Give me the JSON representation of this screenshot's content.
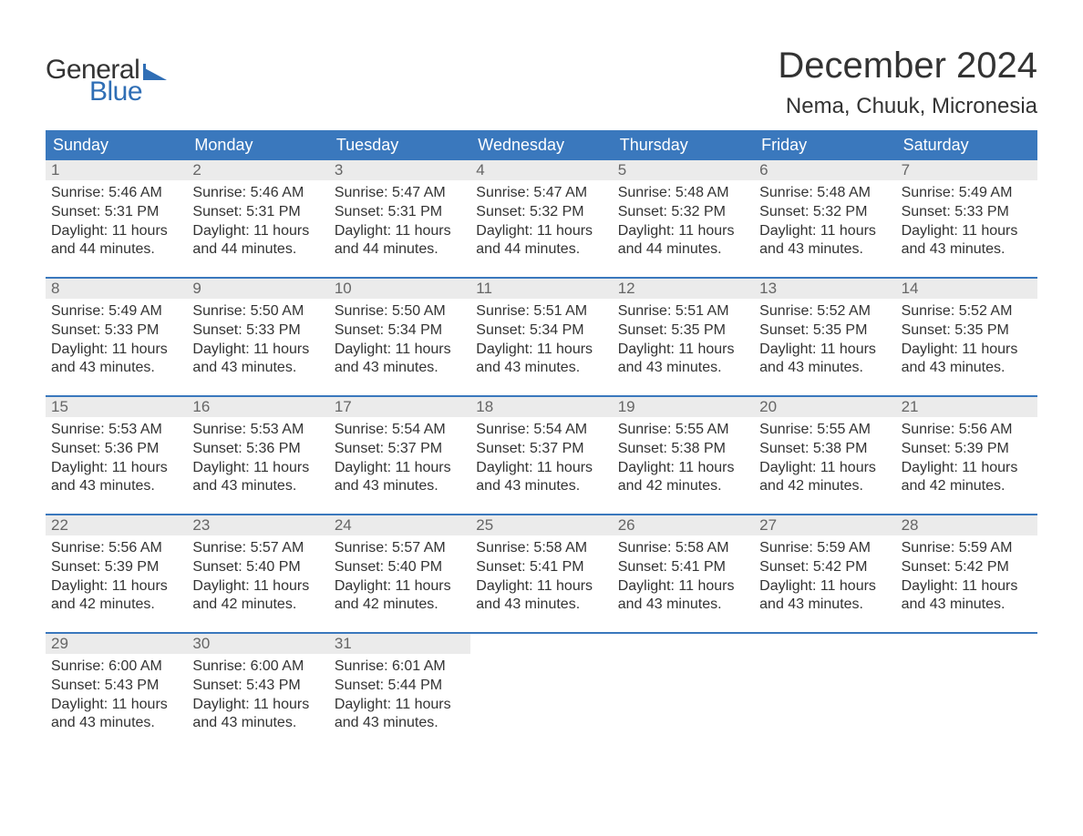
{
  "logo": {
    "text_general": "General",
    "text_blue": "Blue",
    "flag_color": "#2f6eb5"
  },
  "header": {
    "month_title": "December 2024",
    "location": "Nema, Chuuk, Micronesia"
  },
  "colors": {
    "header_bg": "#3a78bd",
    "header_text": "#ffffff",
    "daynum_bg": "#ebebeb",
    "daynum_text": "#666666",
    "body_text": "#333333",
    "week_border": "#3a78bd",
    "page_bg": "#ffffff",
    "logo_blue": "#2f6eb5"
  },
  "typography": {
    "month_title_fontsize": 40,
    "location_fontsize": 24,
    "weekday_fontsize": 18,
    "daynum_fontsize": 17,
    "body_fontsize": 16,
    "logo_fontsize": 30
  },
  "weekdays": [
    "Sunday",
    "Monday",
    "Tuesday",
    "Wednesday",
    "Thursday",
    "Friday",
    "Saturday"
  ],
  "weeks": [
    [
      {
        "n": "1",
        "sunrise": "Sunrise: 5:46 AM",
        "sunset": "Sunset: 5:31 PM",
        "dl1": "Daylight: 11 hours",
        "dl2": "and 44 minutes."
      },
      {
        "n": "2",
        "sunrise": "Sunrise: 5:46 AM",
        "sunset": "Sunset: 5:31 PM",
        "dl1": "Daylight: 11 hours",
        "dl2": "and 44 minutes."
      },
      {
        "n": "3",
        "sunrise": "Sunrise: 5:47 AM",
        "sunset": "Sunset: 5:31 PM",
        "dl1": "Daylight: 11 hours",
        "dl2": "and 44 minutes."
      },
      {
        "n": "4",
        "sunrise": "Sunrise: 5:47 AM",
        "sunset": "Sunset: 5:32 PM",
        "dl1": "Daylight: 11 hours",
        "dl2": "and 44 minutes."
      },
      {
        "n": "5",
        "sunrise": "Sunrise: 5:48 AM",
        "sunset": "Sunset: 5:32 PM",
        "dl1": "Daylight: 11 hours",
        "dl2": "and 44 minutes."
      },
      {
        "n": "6",
        "sunrise": "Sunrise: 5:48 AM",
        "sunset": "Sunset: 5:32 PM",
        "dl1": "Daylight: 11 hours",
        "dl2": "and 43 minutes."
      },
      {
        "n": "7",
        "sunrise": "Sunrise: 5:49 AM",
        "sunset": "Sunset: 5:33 PM",
        "dl1": "Daylight: 11 hours",
        "dl2": "and 43 minutes."
      }
    ],
    [
      {
        "n": "8",
        "sunrise": "Sunrise: 5:49 AM",
        "sunset": "Sunset: 5:33 PM",
        "dl1": "Daylight: 11 hours",
        "dl2": "and 43 minutes."
      },
      {
        "n": "9",
        "sunrise": "Sunrise: 5:50 AM",
        "sunset": "Sunset: 5:33 PM",
        "dl1": "Daylight: 11 hours",
        "dl2": "and 43 minutes."
      },
      {
        "n": "10",
        "sunrise": "Sunrise: 5:50 AM",
        "sunset": "Sunset: 5:34 PM",
        "dl1": "Daylight: 11 hours",
        "dl2": "and 43 minutes."
      },
      {
        "n": "11",
        "sunrise": "Sunrise: 5:51 AM",
        "sunset": "Sunset: 5:34 PM",
        "dl1": "Daylight: 11 hours",
        "dl2": "and 43 minutes."
      },
      {
        "n": "12",
        "sunrise": "Sunrise: 5:51 AM",
        "sunset": "Sunset: 5:35 PM",
        "dl1": "Daylight: 11 hours",
        "dl2": "and 43 minutes."
      },
      {
        "n": "13",
        "sunrise": "Sunrise: 5:52 AM",
        "sunset": "Sunset: 5:35 PM",
        "dl1": "Daylight: 11 hours",
        "dl2": "and 43 minutes."
      },
      {
        "n": "14",
        "sunrise": "Sunrise: 5:52 AM",
        "sunset": "Sunset: 5:35 PM",
        "dl1": "Daylight: 11 hours",
        "dl2": "and 43 minutes."
      }
    ],
    [
      {
        "n": "15",
        "sunrise": "Sunrise: 5:53 AM",
        "sunset": "Sunset: 5:36 PM",
        "dl1": "Daylight: 11 hours",
        "dl2": "and 43 minutes."
      },
      {
        "n": "16",
        "sunrise": "Sunrise: 5:53 AM",
        "sunset": "Sunset: 5:36 PM",
        "dl1": "Daylight: 11 hours",
        "dl2": "and 43 minutes."
      },
      {
        "n": "17",
        "sunrise": "Sunrise: 5:54 AM",
        "sunset": "Sunset: 5:37 PM",
        "dl1": "Daylight: 11 hours",
        "dl2": "and 43 minutes."
      },
      {
        "n": "18",
        "sunrise": "Sunrise: 5:54 AM",
        "sunset": "Sunset: 5:37 PM",
        "dl1": "Daylight: 11 hours",
        "dl2": "and 43 minutes."
      },
      {
        "n": "19",
        "sunrise": "Sunrise: 5:55 AM",
        "sunset": "Sunset: 5:38 PM",
        "dl1": "Daylight: 11 hours",
        "dl2": "and 42 minutes."
      },
      {
        "n": "20",
        "sunrise": "Sunrise: 5:55 AM",
        "sunset": "Sunset: 5:38 PM",
        "dl1": "Daylight: 11 hours",
        "dl2": "and 42 minutes."
      },
      {
        "n": "21",
        "sunrise": "Sunrise: 5:56 AM",
        "sunset": "Sunset: 5:39 PM",
        "dl1": "Daylight: 11 hours",
        "dl2": "and 42 minutes."
      }
    ],
    [
      {
        "n": "22",
        "sunrise": "Sunrise: 5:56 AM",
        "sunset": "Sunset: 5:39 PM",
        "dl1": "Daylight: 11 hours",
        "dl2": "and 42 minutes."
      },
      {
        "n": "23",
        "sunrise": "Sunrise: 5:57 AM",
        "sunset": "Sunset: 5:40 PM",
        "dl1": "Daylight: 11 hours",
        "dl2": "and 42 minutes."
      },
      {
        "n": "24",
        "sunrise": "Sunrise: 5:57 AM",
        "sunset": "Sunset: 5:40 PM",
        "dl1": "Daylight: 11 hours",
        "dl2": "and 42 minutes."
      },
      {
        "n": "25",
        "sunrise": "Sunrise: 5:58 AM",
        "sunset": "Sunset: 5:41 PM",
        "dl1": "Daylight: 11 hours",
        "dl2": "and 43 minutes."
      },
      {
        "n": "26",
        "sunrise": "Sunrise: 5:58 AM",
        "sunset": "Sunset: 5:41 PM",
        "dl1": "Daylight: 11 hours",
        "dl2": "and 43 minutes."
      },
      {
        "n": "27",
        "sunrise": "Sunrise: 5:59 AM",
        "sunset": "Sunset: 5:42 PM",
        "dl1": "Daylight: 11 hours",
        "dl2": "and 43 minutes."
      },
      {
        "n": "28",
        "sunrise": "Sunrise: 5:59 AM",
        "sunset": "Sunset: 5:42 PM",
        "dl1": "Daylight: 11 hours",
        "dl2": "and 43 minutes."
      }
    ],
    [
      {
        "n": "29",
        "sunrise": "Sunrise: 6:00 AM",
        "sunset": "Sunset: 5:43 PM",
        "dl1": "Daylight: 11 hours",
        "dl2": "and 43 minutes."
      },
      {
        "n": "30",
        "sunrise": "Sunrise: 6:00 AM",
        "sunset": "Sunset: 5:43 PM",
        "dl1": "Daylight: 11 hours",
        "dl2": "and 43 minutes."
      },
      {
        "n": "31",
        "sunrise": "Sunrise: 6:01 AM",
        "sunset": "Sunset: 5:44 PM",
        "dl1": "Daylight: 11 hours",
        "dl2": "and 43 minutes."
      },
      null,
      null,
      null,
      null
    ]
  ]
}
